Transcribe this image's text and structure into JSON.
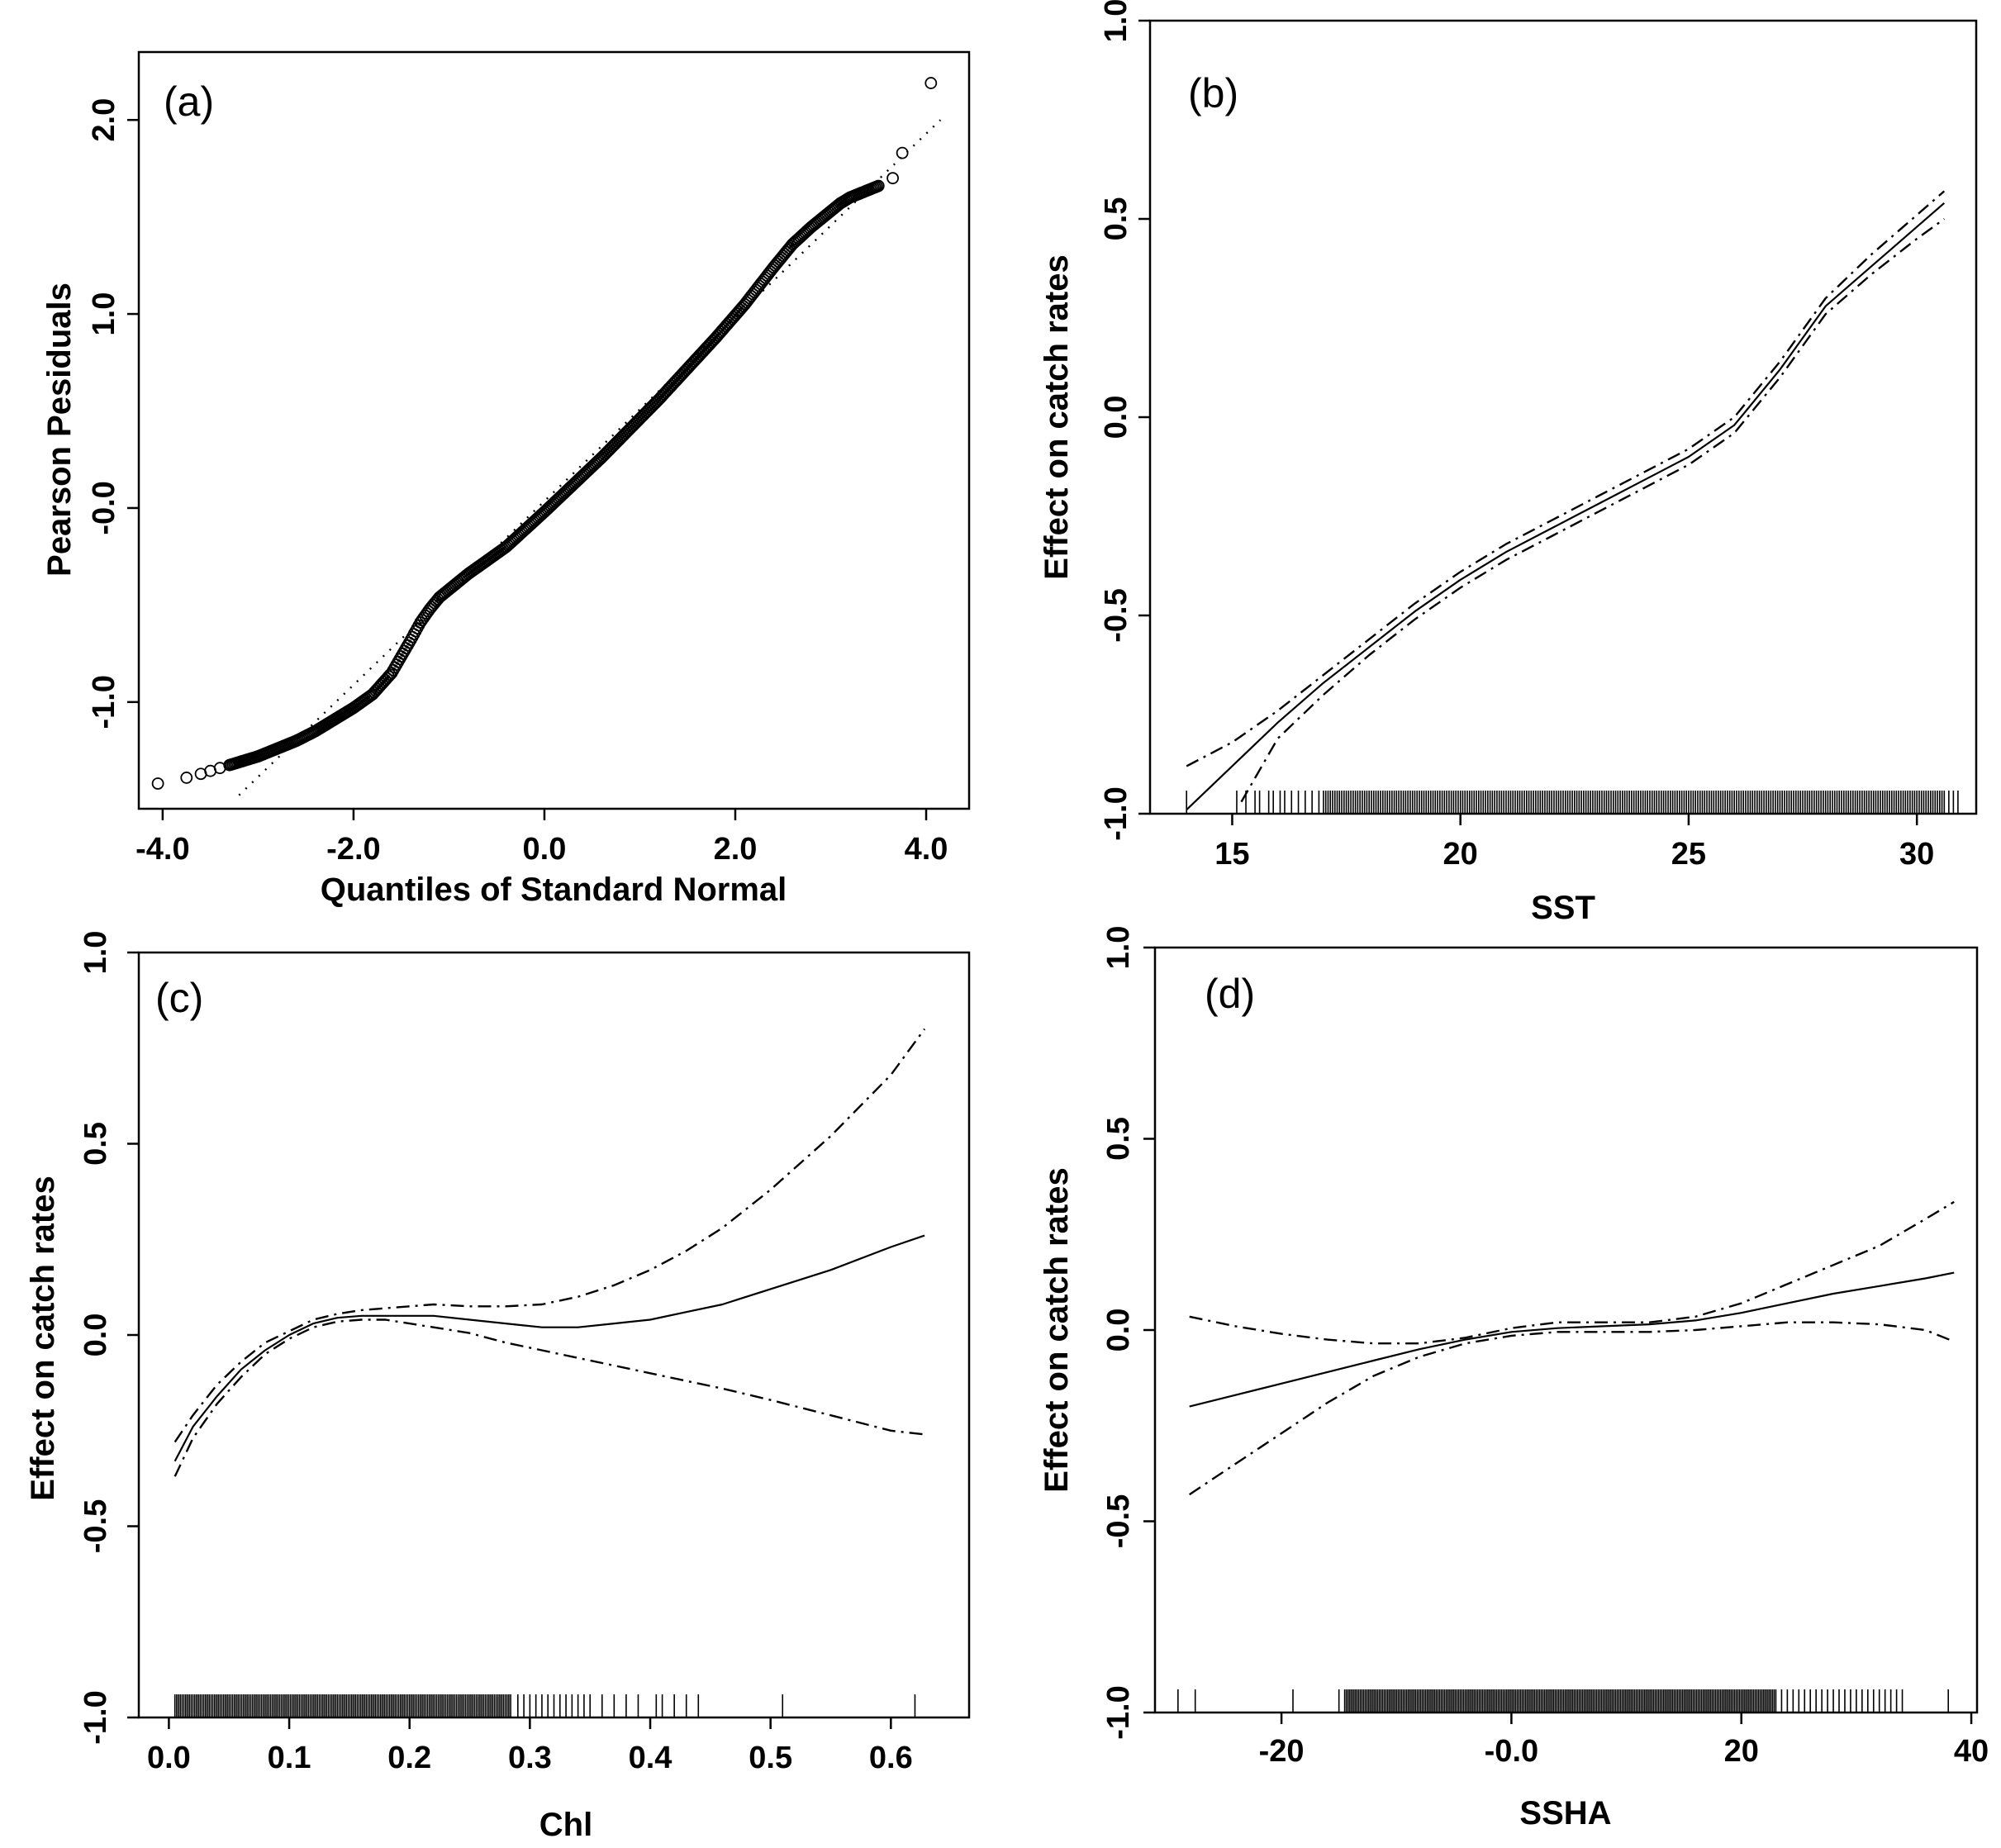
{
  "chart_data": [
    {
      "id": "a",
      "type": "scatter",
      "panel_label": "(a)",
      "xlabel": "Quantiles of Standard Normal",
      "ylabel": "Pearson Pesiduals",
      "xlim": [
        -4.25,
        4.45
      ],
      "ylim": [
        -1.55,
        2.35
      ],
      "x_ticks": [
        -4.0,
        -2.0,
        0.0,
        2.0,
        4.0
      ],
      "x_tick_labels": [
        "-4.0",
        "-2.0",
        "0.0",
        "2.0",
        "4.0"
      ],
      "y_ticks": [
        -1.0,
        0.0,
        1.0,
        2.0
      ],
      "y_tick_labels": [
        "-1.0",
        "-0.0",
        "1.0",
        "2.0"
      ],
      "series": [
        {
          "name": "residual quantiles",
          "style": "circles",
          "x": [
            -4.05,
            -3.75,
            -3.6,
            -3.5,
            -3.4,
            -3.3,
            -3.2,
            -3.1,
            -3.0,
            -2.8,
            -2.6,
            -2.4,
            -2.2,
            -2.0,
            -1.8,
            -1.6,
            -1.4,
            -1.3,
            -1.2,
            -1.1,
            -1.0,
            -0.8,
            -0.6,
            -0.4,
            -0.2,
            0.0,
            0.3,
            0.6,
            0.9,
            1.2,
            1.5,
            1.8,
            2.1,
            2.4,
            2.6,
            2.8,
            3.0,
            3.1,
            3.2,
            3.3,
            3.4,
            3.5,
            3.65,
            3.75,
            4.05
          ],
          "y": [
            -1.42,
            -1.39,
            -1.37,
            -1.355,
            -1.34,
            -1.325,
            -1.31,
            -1.295,
            -1.28,
            -1.24,
            -1.2,
            -1.15,
            -1.09,
            -1.03,
            -0.96,
            -0.85,
            -0.68,
            -0.59,
            -0.52,
            -0.46,
            -0.42,
            -0.34,
            -0.27,
            -0.2,
            -0.11,
            -0.02,
            0.12,
            0.26,
            0.41,
            0.56,
            0.72,
            0.88,
            1.05,
            1.24,
            1.36,
            1.45,
            1.53,
            1.57,
            1.6,
            1.62,
            1.64,
            1.66,
            1.7,
            1.83,
            2.19
          ]
        },
        {
          "name": "reference line",
          "style": "dotted",
          "x": [
            -3.2,
            4.15
          ],
          "y": [
            -1.48,
            2.0
          ]
        }
      ]
    },
    {
      "id": "b",
      "type": "line",
      "panel_label": "(b)",
      "xlabel": "SST",
      "ylabel": "Effect on catch rates",
      "xlim": [
        13.2,
        31.3
      ],
      "ylim": [
        -1.0,
        1.0
      ],
      "x_ticks": [
        15,
        20,
        25,
        30
      ],
      "x_tick_labels": [
        "15",
        "20",
        "25",
        "30"
      ],
      "y_ticks": [
        -1.0,
        -0.5,
        0.0,
        0.5,
        1.0
      ],
      "y_tick_labels": [
        "-1.0",
        "-0.5",
        "0.0",
        "0.5",
        "1.0"
      ],
      "series": [
        {
          "name": "fit",
          "style": "solid",
          "x": [
            14.0,
            15.0,
            16.0,
            17.0,
            18.0,
            19.0,
            20.0,
            21.0,
            22.0,
            23.0,
            24.0,
            25.0,
            26.0,
            27.0,
            28.0,
            29.0,
            30.0,
            30.6
          ],
          "y": [
            -0.99,
            -0.88,
            -0.77,
            -0.67,
            -0.58,
            -0.49,
            -0.41,
            -0.34,
            -0.28,
            -0.22,
            -0.16,
            -0.1,
            -0.02,
            0.12,
            0.28,
            0.38,
            0.48,
            0.54
          ]
        },
        {
          "name": "upper CI",
          "style": "dashdot",
          "x": [
            14.0,
            15.0,
            16.0,
            17.0,
            18.0,
            19.0,
            20.0,
            21.0,
            22.0,
            23.0,
            24.0,
            25.0,
            26.0,
            27.0,
            28.0,
            29.0,
            30.0,
            30.6
          ],
          "y": [
            -0.88,
            -0.82,
            -0.74,
            -0.65,
            -0.56,
            -0.47,
            -0.39,
            -0.32,
            -0.26,
            -0.2,
            -0.14,
            -0.08,
            0.0,
            0.14,
            0.3,
            0.41,
            0.51,
            0.57
          ]
        },
        {
          "name": "lower CI",
          "style": "dashdot",
          "x": [
            15.2,
            16.0,
            17.0,
            18.0,
            19.0,
            20.0,
            21.0,
            22.0,
            23.0,
            24.0,
            25.0,
            26.0,
            27.0,
            28.0,
            29.0,
            30.0,
            30.6
          ],
          "y": [
            -0.97,
            -0.81,
            -0.7,
            -0.6,
            -0.51,
            -0.43,
            -0.36,
            -0.3,
            -0.24,
            -0.18,
            -0.12,
            -0.04,
            0.1,
            0.26,
            0.36,
            0.45,
            0.5
          ]
        }
      ],
      "rug": {
        "sparse": [
          14.0,
          15.1,
          15.3,
          15.5,
          15.6,
          15.8,
          15.9,
          16.05,
          16.15,
          16.3,
          16.45,
          16.6,
          16.75,
          16.9
        ],
        "dense_range": [
          17.0,
          30.6
        ],
        "dense_step": 0.05,
        "tail": [
          30.7,
          30.8,
          30.9
        ]
      }
    },
    {
      "id": "c",
      "type": "line",
      "panel_label": "(c)",
      "xlabel": "Chl",
      "ylabel": "Effect on catch rates",
      "xlim": [
        -0.025,
        0.665
      ],
      "ylim": [
        -1.0,
        1.0
      ],
      "x_ticks": [
        0.0,
        0.1,
        0.2,
        0.3,
        0.4,
        0.5,
        0.6
      ],
      "x_tick_labels": [
        "0.0",
        "0.1",
        "0.2",
        "0.3",
        "0.4",
        "0.5",
        "0.6"
      ],
      "y_ticks": [
        -1.0,
        -0.5,
        0.0,
        0.5,
        1.0
      ],
      "y_tick_labels": [
        "-1.0",
        "-0.5",
        "0.0",
        "0.5",
        "1.0"
      ],
      "series": [
        {
          "name": "fit",
          "style": "solid",
          "x": [
            0.005,
            0.02,
            0.04,
            0.06,
            0.08,
            0.1,
            0.12,
            0.14,
            0.16,
            0.18,
            0.2,
            0.22,
            0.25,
            0.28,
            0.31,
            0.34,
            0.37,
            0.4,
            0.43,
            0.46,
            0.5,
            0.55,
            0.6,
            0.628
          ],
          "y": [
            -0.33,
            -0.24,
            -0.16,
            -0.09,
            -0.04,
            0.0,
            0.03,
            0.045,
            0.05,
            0.05,
            0.05,
            0.05,
            0.04,
            0.03,
            0.02,
            0.02,
            0.03,
            0.04,
            0.06,
            0.08,
            0.12,
            0.17,
            0.23,
            0.26
          ]
        },
        {
          "name": "upper CI",
          "style": "dashdot",
          "x": [
            0.005,
            0.02,
            0.04,
            0.06,
            0.08,
            0.1,
            0.12,
            0.14,
            0.16,
            0.18,
            0.2,
            0.22,
            0.25,
            0.28,
            0.31,
            0.34,
            0.37,
            0.4,
            0.43,
            0.46,
            0.5,
            0.55,
            0.6,
            0.628
          ],
          "y": [
            -0.28,
            -0.21,
            -0.13,
            -0.07,
            -0.02,
            0.01,
            0.04,
            0.055,
            0.065,
            0.07,
            0.075,
            0.08,
            0.075,
            0.075,
            0.08,
            0.1,
            0.13,
            0.17,
            0.22,
            0.28,
            0.38,
            0.52,
            0.68,
            0.8
          ]
        },
        {
          "name": "lower CI",
          "style": "dashdot",
          "x": [
            0.005,
            0.02,
            0.04,
            0.06,
            0.08,
            0.1,
            0.12,
            0.14,
            0.16,
            0.18,
            0.2,
            0.22,
            0.25,
            0.28,
            0.31,
            0.34,
            0.37,
            0.4,
            0.43,
            0.46,
            0.5,
            0.55,
            0.6,
            0.628
          ],
          "y": [
            -0.37,
            -0.27,
            -0.18,
            -0.11,
            -0.05,
            -0.01,
            0.02,
            0.035,
            0.04,
            0.04,
            0.03,
            0.02,
            0.005,
            -0.02,
            -0.04,
            -0.06,
            -0.08,
            -0.1,
            -0.12,
            -0.14,
            -0.17,
            -0.21,
            -0.25,
            -0.26
          ]
        }
      ],
      "rug": {
        "sparse": [
          0.29,
          0.295,
          0.3,
          0.305,
          0.31,
          0.315,
          0.32,
          0.325,
          0.33,
          0.335,
          0.34,
          0.345,
          0.35,
          0.36,
          0.37,
          0.38,
          0.39,
          0.405,
          0.41,
          0.42,
          0.43,
          0.44,
          0.51,
          0.62
        ],
        "dense_range": [
          0.005,
          0.285
        ],
        "dense_step": 0.0015,
        "tail": []
      }
    },
    {
      "id": "d",
      "type": "line",
      "panel_label": "(d)",
      "xlabel": "SSHA",
      "ylabel": "Effect on catch rates",
      "xlim": [
        -31,
        40.5
      ],
      "ylim": [
        -1.0,
        1.0
      ],
      "x_ticks": [
        -20,
        0,
        20,
        40
      ],
      "x_tick_labels": [
        "-20",
        "-0.0",
        "20",
        "40"
      ],
      "y_ticks": [
        -1.0,
        -0.5,
        0.0,
        0.5,
        1.0
      ],
      "y_tick_labels": [
        "-1.0",
        "-0.5",
        "0.0",
        "0.5",
        "1.0"
      ],
      "series": [
        {
          "name": "fit",
          "style": "solid",
          "x": [
            -28,
            -24,
            -20,
            -16,
            -12,
            -8,
            -4,
            0,
            4,
            8,
            12,
            16,
            20,
            24,
            28,
            32,
            36,
            38.5
          ],
          "y": [
            -0.2,
            -0.17,
            -0.14,
            -0.11,
            -0.08,
            -0.05,
            -0.025,
            -0.005,
            0.005,
            0.01,
            0.015,
            0.025,
            0.045,
            0.07,
            0.095,
            0.115,
            0.135,
            0.15
          ]
        },
        {
          "name": "upper CI",
          "style": "dashdot",
          "x": [
            -28,
            -24,
            -20,
            -16,
            -12,
            -8,
            -4,
            0,
            4,
            8,
            12,
            16,
            20,
            24,
            28,
            32,
            36,
            38.5
          ],
          "y": [
            0.035,
            0.01,
            -0.01,
            -0.025,
            -0.035,
            -0.035,
            -0.02,
            0.005,
            0.02,
            0.02,
            0.02,
            0.035,
            0.07,
            0.12,
            0.17,
            0.22,
            0.29,
            0.335
          ]
        },
        {
          "name": "lower CI",
          "style": "dashdot",
          "x": [
            -28,
            -24,
            -20,
            -16,
            -12,
            -8,
            -4,
            0,
            4,
            8,
            12,
            16,
            20,
            24,
            28,
            32,
            36,
            38.5
          ],
          "y": [
            -0.43,
            -0.35,
            -0.27,
            -0.19,
            -0.12,
            -0.07,
            -0.035,
            -0.015,
            -0.005,
            -0.005,
            -0.005,
            0.0,
            0.01,
            0.02,
            0.02,
            0.015,
            0.0,
            -0.03
          ]
        }
      ],
      "rug": {
        "sparse": [
          -29,
          -27.5,
          -19,
          -15,
          23.5,
          24,
          24.5,
          25,
          25.5,
          26,
          26.5,
          27,
          27.5,
          28,
          28.5,
          29,
          29.5,
          30,
          30.5,
          31,
          31.5,
          32,
          32.5,
          33,
          33.5,
          34,
          38
        ],
        "dense_range": [
          -14.5,
          23
        ],
        "dense_step": 0.15,
        "tail": []
      }
    }
  ]
}
